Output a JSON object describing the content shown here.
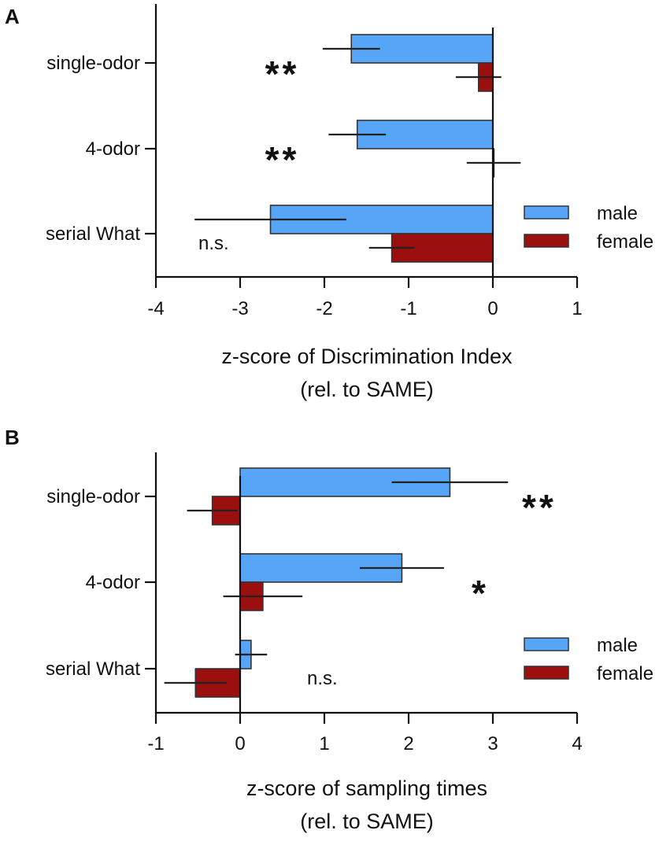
{
  "chart_data": [
    {
      "panel": "A",
      "type": "bar",
      "orientation": "horizontal",
      "categories": [
        "single-odor",
        "4-odor",
        "serial What"
      ],
      "series": [
        {
          "name": "male",
          "color": "#56a5f6",
          "values": [
            -1.68,
            -1.61,
            -2.64
          ],
          "errors": [
            0.34,
            0.34,
            0.9
          ]
        },
        {
          "name": "female",
          "color": "#9c0f0f",
          "values": [
            -0.17,
            0.01,
            -1.2
          ],
          "errors": [
            0.27,
            0.32,
            0.27
          ]
        }
      ],
      "significance": [
        "**",
        "**",
        "n.s."
      ],
      "xlim": [
        -4,
        1
      ],
      "xticks": [
        "-4",
        "-3",
        "-2",
        "-1",
        "0",
        "1"
      ],
      "xlabel": "z-score of Discrimination Index",
      "xlabel_sub": "(rel. to SAME)"
    },
    {
      "panel": "B",
      "type": "bar",
      "orientation": "horizontal",
      "categories": [
        "single-odor",
        "4-odor",
        "serial What"
      ],
      "series": [
        {
          "name": "male",
          "color": "#56a5f6",
          "values": [
            2.49,
            1.92,
            0.13
          ],
          "errors": [
            0.69,
            0.5,
            0.19
          ]
        },
        {
          "name": "female",
          "color": "#9c0f0f",
          "values": [
            -0.33,
            0.27,
            -0.53
          ],
          "errors": [
            0.3,
            0.47,
            0.37
          ]
        }
      ],
      "significance": [
        "**",
        "*",
        "n.s."
      ],
      "xlim": [
        -1,
        4
      ],
      "xticks": [
        "-1",
        "0",
        "1",
        "2",
        "3",
        "4"
      ],
      "xlabel": "z-score of sampling times",
      "xlabel_sub": "(rel. to SAME)"
    }
  ]
}
